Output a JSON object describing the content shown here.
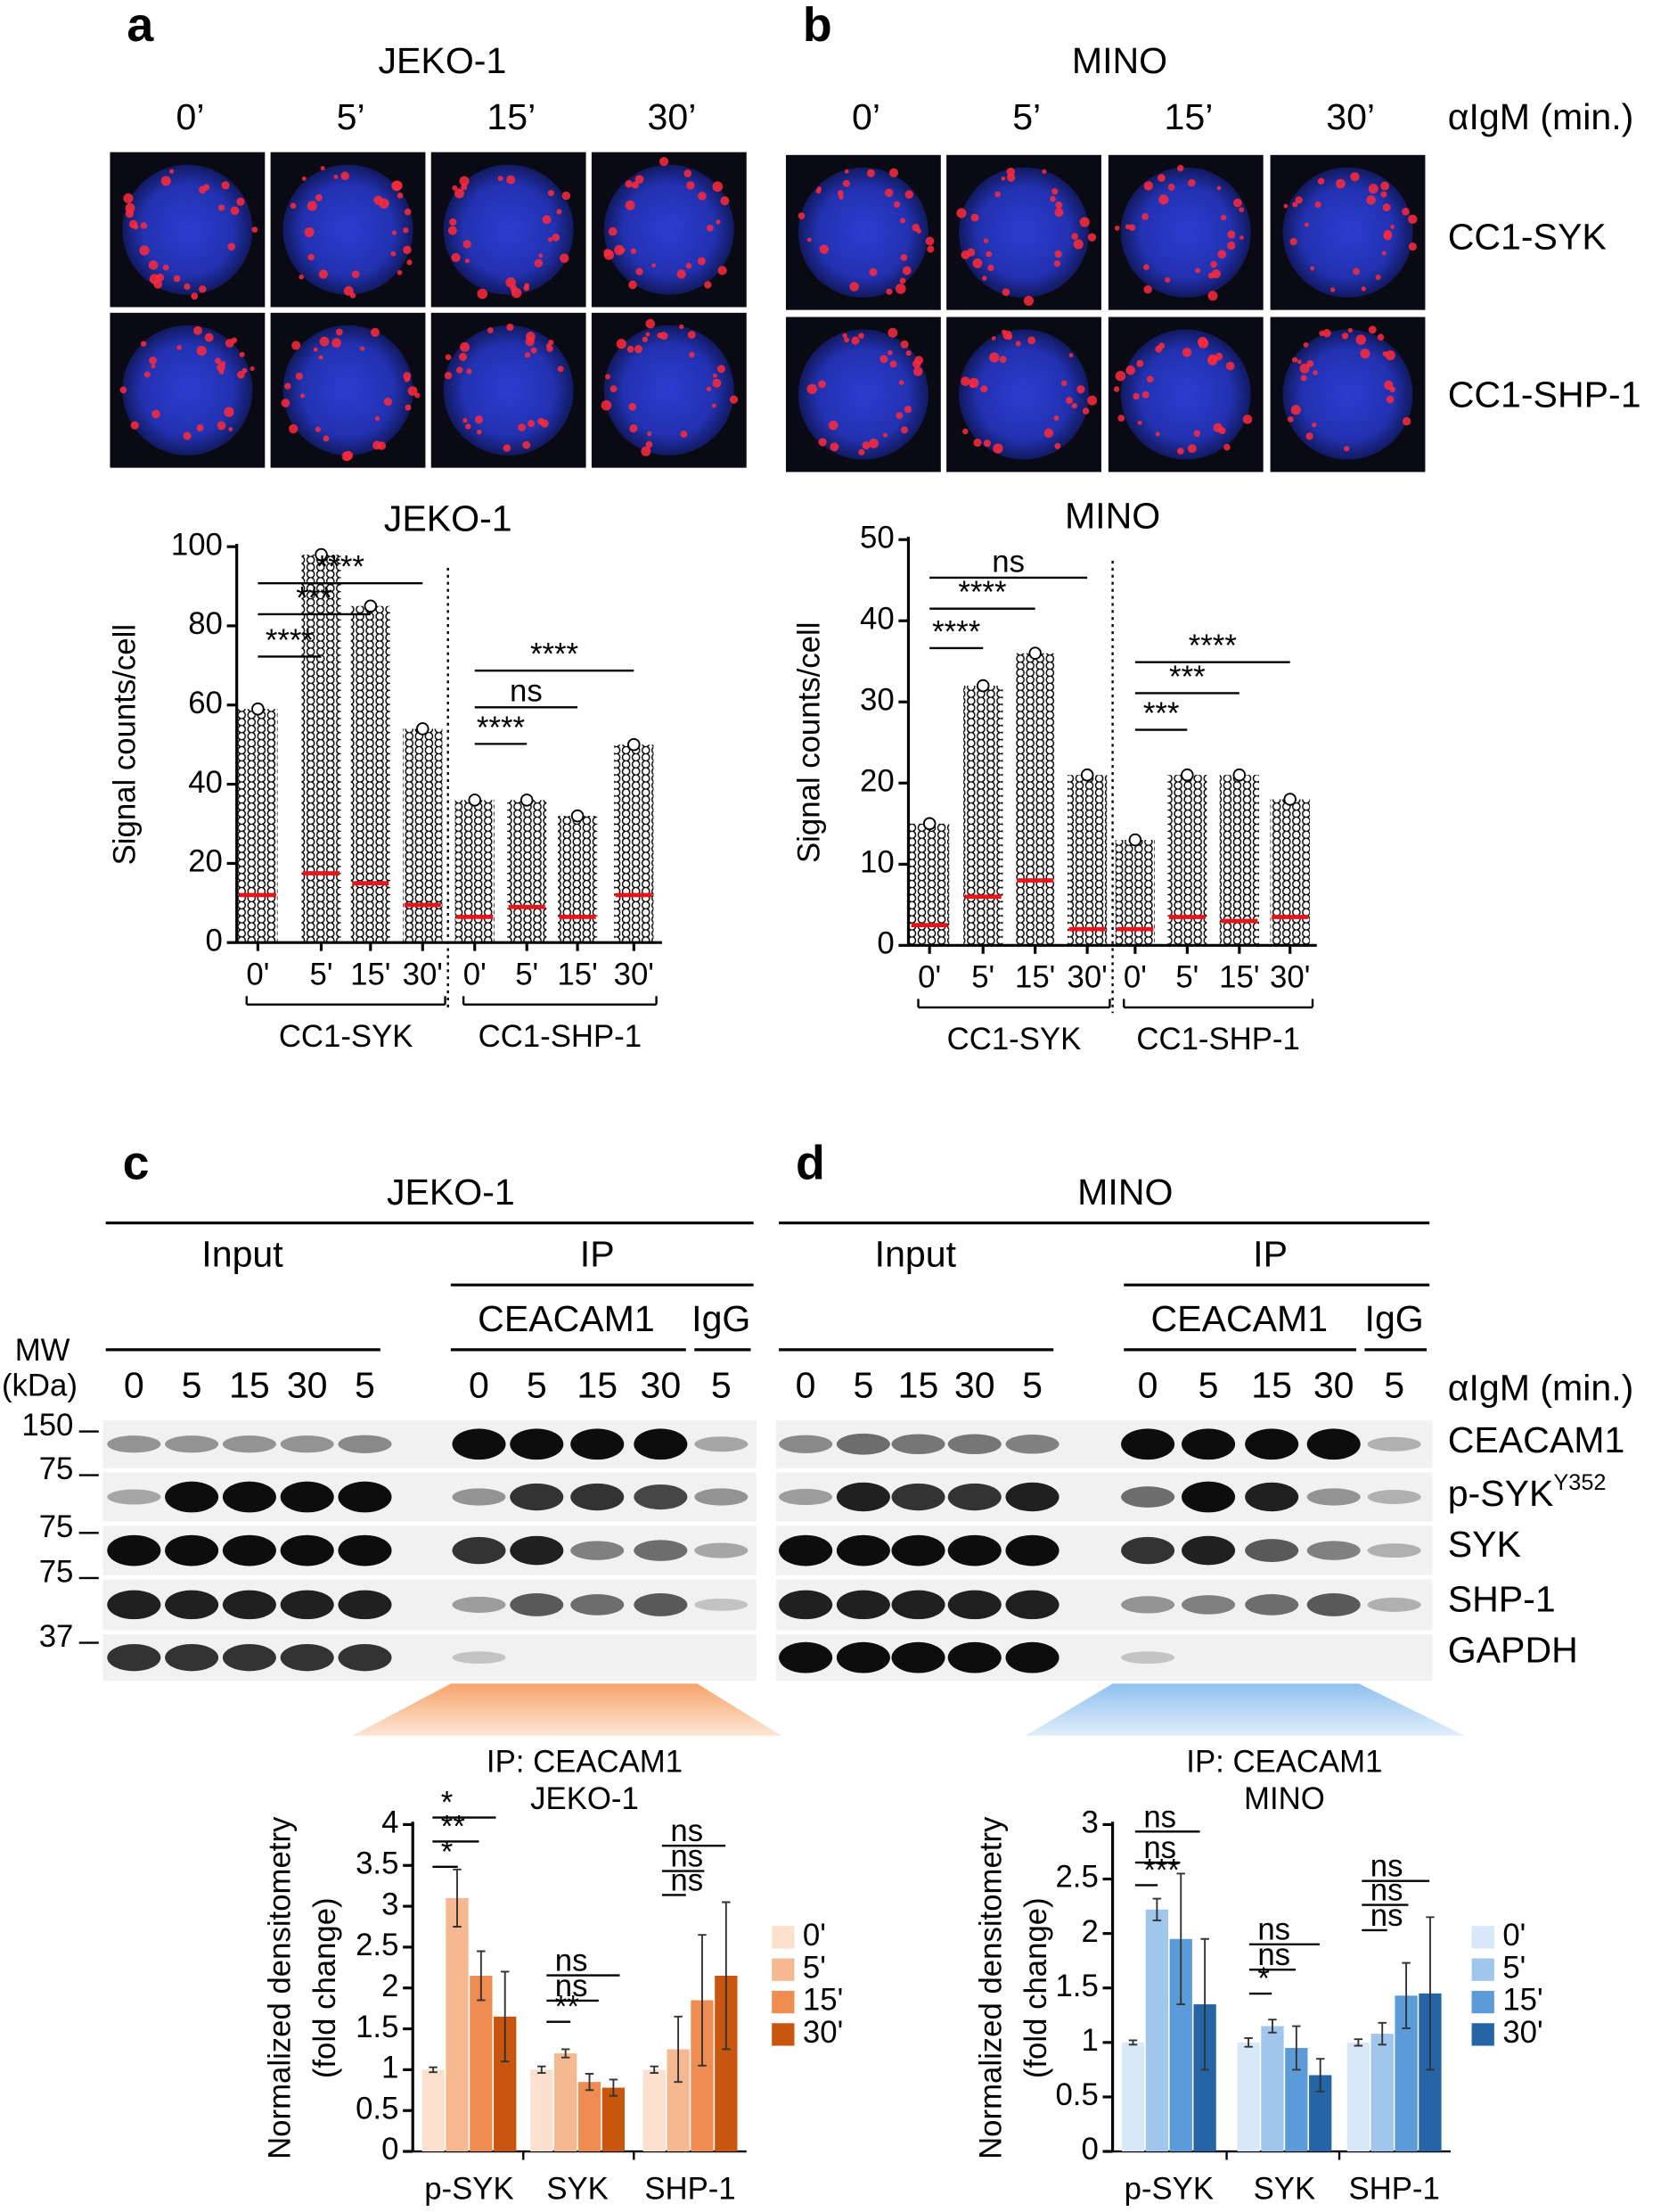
{
  "imaging": {
    "a": {
      "letter": "a",
      "cell_line": "JEKO-1",
      "times": [
        "0’",
        "5’",
        "15’",
        "30’"
      ]
    },
    "b": {
      "letter": "b",
      "cell_line": "MINO",
      "times": [
        "0’",
        "5’",
        "15’",
        "30’"
      ],
      "stimulus": "αIgM (min.)",
      "rows": [
        "CC1-SYK",
        "CC1-SHP-1"
      ]
    }
  },
  "chart_data": [
    {
      "type": "dot",
      "title": "JEKO-1",
      "ylabel": "Signal counts/cell",
      "categories": [
        "0'",
        "5'",
        "15'",
        "30'",
        "0'",
        "5'",
        "15'",
        "30'"
      ],
      "groups": [
        "CC1-SYK",
        "CC1-SHP-1"
      ],
      "values": [
        12,
        17.5,
        15,
        9.5,
        6.5,
        9,
        6.5,
        12
      ],
      "max": [
        59,
        98,
        85,
        54,
        36,
        36,
        32,
        50
      ],
      "median_color": "#e8141b",
      "ylim": [
        0,
        100
      ],
      "yticks": [
        0,
        20,
        40,
        60,
        80,
        100
      ],
      "comparisons": [
        "****",
        "***",
        "****",
        "****",
        "ns",
        "****"
      ]
    },
    {
      "type": "dot",
      "title": "MINO",
      "ylabel": "Signal counts/cell",
      "categories": [
        "0'",
        "5'",
        "15'",
        "30'",
        "0'",
        "5'",
        "15'",
        "30'"
      ],
      "groups": [
        "CC1-SYK",
        "CC1-SHP-1"
      ],
      "values": [
        2.5,
        6,
        8,
        2,
        2,
        3.5,
        3,
        3.5
      ],
      "max": [
        15,
        32,
        36,
        21,
        13,
        21,
        21,
        18
      ],
      "median_color": "#e8141b",
      "ylim": [
        0,
        50
      ],
      "yticks": [
        0,
        10,
        20,
        30,
        40,
        50
      ],
      "comparisons": [
        "****",
        "****",
        "ns",
        "***",
        "***",
        "****"
      ]
    },
    {
      "type": "bar",
      "title": "IP: CEACAM1",
      "subtitle": "JEKO-1",
      "ylabel": "Normalized densitometry",
      "ylabel2": "(fold change)",
      "categories": [
        "p-SYK",
        "SYK",
        "SHP-1"
      ],
      "series": [
        {
          "name": "0'",
          "color": "#fbe0cd",
          "values": [
            1,
            1,
            1
          ],
          "errors": [
            0.03,
            0.04,
            0.04
          ]
        },
        {
          "name": "5'",
          "color": "#f6b890",
          "values": [
            3.1,
            1.2,
            1.25
          ],
          "errors": [
            0.35,
            0.05,
            0.4
          ]
        },
        {
          "name": "15'",
          "color": "#ee8c52",
          "values": [
            2.15,
            0.85,
            1.85
          ],
          "errors": [
            0.3,
            0.1,
            0.8
          ]
        },
        {
          "name": "30'",
          "color": "#c9560f",
          "values": [
            1.65,
            0.78,
            2.15
          ],
          "errors": [
            0.55,
            0.1,
            0.9
          ]
        }
      ],
      "ylim": [
        0,
        4
      ],
      "yticks": [
        0,
        0.5,
        1,
        1.5,
        2,
        2.5,
        3,
        3.5,
        4
      ],
      "significance": [
        [
          "*",
          "**",
          "*"
        ],
        [
          "ns",
          "ns",
          "**"
        ],
        [
          "ns",
          "ns",
          "ns"
        ]
      ]
    },
    {
      "type": "bar",
      "title": "IP: CEACAM1",
      "subtitle": "MINO",
      "ylabel": "Normalized densitometry",
      "ylabel2": "(fold change)",
      "categories": [
        "p-SYK",
        "SYK",
        "SHP-1"
      ],
      "series": [
        {
          "name": "0'",
          "color": "#d8e8f8",
          "values": [
            1,
            1,
            1
          ],
          "errors": [
            0.02,
            0.04,
            0.03
          ]
        },
        {
          "name": "5'",
          "color": "#a0c6ec",
          "values": [
            2.22,
            1.15,
            1.08
          ],
          "errors": [
            0.1,
            0.06,
            0.1
          ]
        },
        {
          "name": "15'",
          "color": "#5b9bd9",
          "values": [
            1.95,
            0.95,
            1.43
          ],
          "errors": [
            0.6,
            0.2,
            0.3
          ]
        },
        {
          "name": "30'",
          "color": "#2565a6",
          "values": [
            1.35,
            0.7,
            1.45
          ],
          "errors": [
            0.6,
            0.15,
            0.7
          ]
        }
      ],
      "ylim": [
        0,
        3
      ],
      "yticks": [
        0,
        0.5,
        1,
        1.5,
        2,
        2.5,
        3
      ],
      "significance": [
        [
          "ns",
          "ns",
          "***"
        ],
        [
          "ns",
          "ns",
          "*"
        ],
        [
          "ns",
          "ns",
          "ns"
        ]
      ]
    }
  ],
  "blots": {
    "c": {
      "letter": "c",
      "cell_line": "JEKO-1",
      "input": "Input",
      "ip": "IP",
      "ip_antibody": "CEACAM1",
      "control": "IgG",
      "mw_header": [
        "MW",
        "(kDa)"
      ],
      "mw": [
        "150",
        "75",
        "75",
        "75",
        "37"
      ],
      "lanes": [
        "0",
        "5",
        "15",
        "30",
        "5",
        "0",
        "5",
        "15",
        "30",
        "5"
      ]
    },
    "d": {
      "letter": "d",
      "cell_line": "MINO",
      "input": "Input",
      "ip": "IP",
      "ip_antibody": "CEACAM1",
      "control": "IgG",
      "lanes": [
        "0",
        "5",
        "15",
        "30",
        "5",
        "0",
        "5",
        "15",
        "30",
        "5"
      ],
      "stimulus": "αIgM (min.)",
      "proteins": [
        "CEACAM1",
        "p-SYK",
        "SYK",
        "SHP-1",
        "GAPDH"
      ],
      "superscript": "Y352"
    }
  }
}
